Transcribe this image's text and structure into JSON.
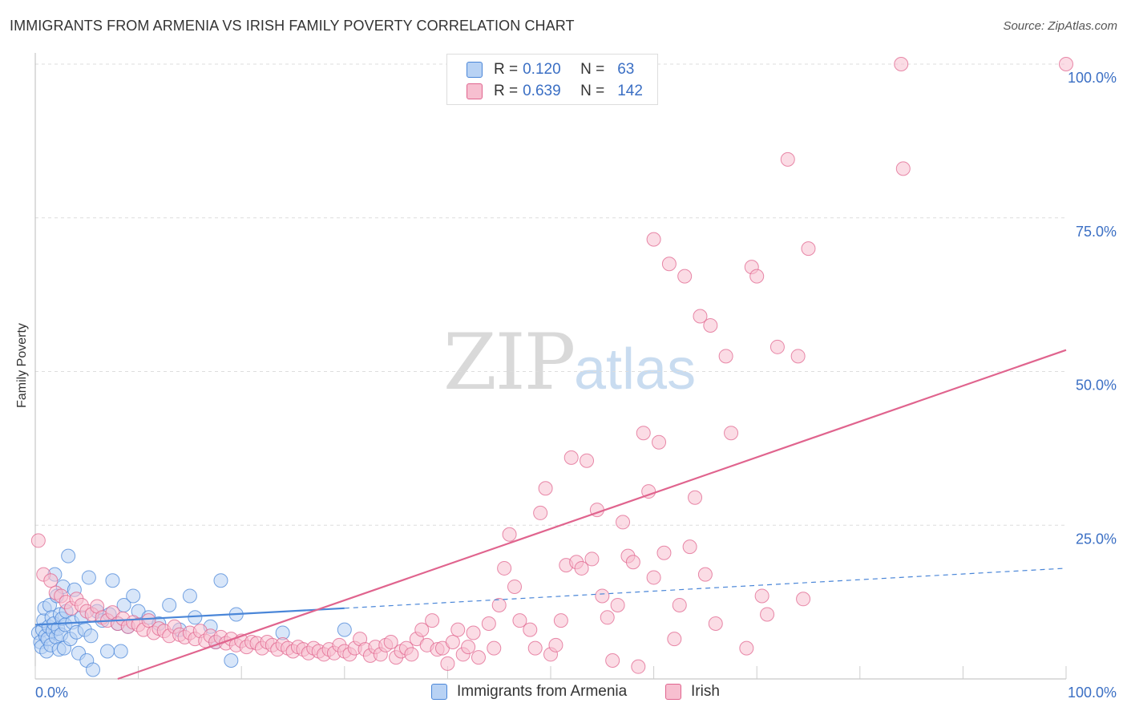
{
  "title": "IMMIGRANTS FROM ARMENIA VS IRISH FAMILY POVERTY CORRELATION CHART",
  "source": "Source: ZipAtlas.com",
  "watermark": {
    "zip": "ZIP",
    "atlas": "atlas"
  },
  "colors": {
    "armenia": "#4a86d8",
    "armenia_fill": "#b8d2f4",
    "irish": "#e0648e",
    "irish_fill": "#f7bfd0",
    "axis_label": "#3b6fc4",
    "grid": "#dddddd"
  },
  "legend": {
    "rows": [
      {
        "r_label": "R =",
        "r_value": "0.120",
        "n_label": "N =",
        "n_value": "63"
      },
      {
        "r_label": "R =",
        "r_value": "0.639",
        "n_label": "N =",
        "n_value": "142"
      }
    ]
  },
  "bottom_legend": {
    "armenia": "Immigrants from Armenia",
    "irish": "Irish"
  },
  "chart_data": {
    "type": "scatter",
    "title": "IMMIGRANTS FROM ARMENIA VS IRISH FAMILY POVERTY CORRELATION CHART",
    "xlabel": "",
    "ylabel": "Family Poverty",
    "xlim": [
      0,
      100
    ],
    "ylim": [
      0,
      100
    ],
    "x_tick_labels": [
      "0.0%",
      "100.0%"
    ],
    "y_tick_labels": [
      "25.0%",
      "50.0%",
      "75.0%",
      "100.0%"
    ],
    "y_ticks": [
      25,
      50,
      75,
      100
    ],
    "grid": true,
    "legend_position": "top-center",
    "series": [
      {
        "name": "Immigrants from Armenia",
        "color": "#4a86d8",
        "trend": {
          "x": [
            0,
            30
          ],
          "y": [
            8.8,
            11.5
          ],
          "dashed_to": [
            100,
            18
          ]
        },
        "points": [
          [
            0.3,
            7.5
          ],
          [
            0.5,
            6.0
          ],
          [
            0.6,
            5.2
          ],
          [
            0.7,
            8.0
          ],
          [
            0.8,
            9.5
          ],
          [
            0.9,
            11.5
          ],
          [
            1.0,
            7.0
          ],
          [
            1.1,
            4.5
          ],
          [
            1.2,
            6.5
          ],
          [
            1.3,
            8.5
          ],
          [
            1.4,
            12.0
          ],
          [
            1.5,
            5.5
          ],
          [
            1.6,
            10.0
          ],
          [
            1.7,
            7.8
          ],
          [
            1.8,
            9.0
          ],
          [
            1.9,
            17.0
          ],
          [
            2.0,
            6.8
          ],
          [
            2.1,
            13.5
          ],
          [
            2.2,
            8.2
          ],
          [
            2.3,
            4.8
          ],
          [
            2.4,
            10.5
          ],
          [
            2.5,
            7.2
          ],
          [
            2.6,
            9.8
          ],
          [
            2.7,
            15.0
          ],
          [
            2.8,
            5.0
          ],
          [
            2.9,
            8.8
          ],
          [
            3.0,
            11.0
          ],
          [
            3.2,
            20.0
          ],
          [
            3.4,
            6.5
          ],
          [
            3.6,
            9.2
          ],
          [
            3.8,
            14.5
          ],
          [
            4.0,
            7.6
          ],
          [
            4.2,
            4.2
          ],
          [
            4.5,
            10.0
          ],
          [
            4.8,
            8.0
          ],
          [
            5.0,
            3.0
          ],
          [
            5.2,
            16.5
          ],
          [
            5.4,
            7.0
          ],
          [
            5.6,
            1.5
          ],
          [
            6.0,
            11.0
          ],
          [
            6.5,
            9.5
          ],
          [
            7.0,
            4.5
          ],
          [
            7.2,
            10.5
          ],
          [
            7.5,
            16.0
          ],
          [
            8.0,
            9.0
          ],
          [
            8.3,
            4.5
          ],
          [
            8.6,
            12.0
          ],
          [
            9.0,
            8.5
          ],
          [
            9.5,
            13.5
          ],
          [
            10.0,
            11.0
          ],
          [
            11.0,
            10.0
          ],
          [
            12.0,
            9.0
          ],
          [
            13.0,
            12.0
          ],
          [
            14.0,
            8.0
          ],
          [
            15.0,
            13.5
          ],
          [
            15.5,
            10.0
          ],
          [
            17.0,
            8.5
          ],
          [
            19.0,
            3.0
          ],
          [
            18.0,
            16.0
          ],
          [
            19.5,
            10.5
          ],
          [
            24.0,
            7.5
          ],
          [
            30.0,
            8.0
          ],
          [
            17.5,
            6.0
          ]
        ]
      },
      {
        "name": "Irish",
        "color": "#e0648e",
        "trend": {
          "x": [
            8,
            100
          ],
          "y": [
            0,
            53.5
          ]
        },
        "points": [
          [
            0.3,
            22.5
          ],
          [
            0.8,
            17.0
          ],
          [
            1.5,
            16.0
          ],
          [
            2.0,
            14.0
          ],
          [
            2.5,
            13.5
          ],
          [
            3.0,
            12.5
          ],
          [
            3.5,
            11.5
          ],
          [
            4.0,
            13.0
          ],
          [
            4.5,
            12.0
          ],
          [
            5.0,
            11.0
          ],
          [
            5.5,
            10.5
          ],
          [
            6.0,
            11.8
          ],
          [
            6.5,
            10.0
          ],
          [
            7.0,
            9.5
          ],
          [
            7.5,
            10.8
          ],
          [
            8.0,
            9.0
          ],
          [
            8.5,
            9.8
          ],
          [
            9.0,
            8.5
          ],
          [
            9.5,
            9.2
          ],
          [
            10.0,
            8.8
          ],
          [
            10.5,
            8.0
          ],
          [
            11.0,
            9.5
          ],
          [
            11.5,
            7.5
          ],
          [
            12.0,
            8.2
          ],
          [
            12.5,
            7.8
          ],
          [
            13.0,
            7.0
          ],
          [
            13.5,
            8.5
          ],
          [
            14.0,
            7.2
          ],
          [
            14.5,
            6.8
          ],
          [
            15.0,
            7.5
          ],
          [
            15.5,
            6.5
          ],
          [
            16.0,
            7.8
          ],
          [
            16.5,
            6.2
          ],
          [
            17.0,
            7.0
          ],
          [
            17.5,
            6.0
          ],
          [
            18.0,
            6.8
          ],
          [
            18.5,
            5.8
          ],
          [
            19.0,
            6.5
          ],
          [
            19.5,
            5.5
          ],
          [
            20.0,
            6.2
          ],
          [
            20.5,
            5.2
          ],
          [
            21.0,
            6.0
          ],
          [
            21.5,
            5.8
          ],
          [
            22.0,
            5.0
          ],
          [
            22.5,
            6.0
          ],
          [
            23.0,
            5.5
          ],
          [
            23.5,
            4.8
          ],
          [
            24.0,
            5.6
          ],
          [
            24.5,
            5.0
          ],
          [
            25.0,
            4.5
          ],
          [
            25.5,
            5.2
          ],
          [
            26.0,
            4.8
          ],
          [
            26.5,
            4.2
          ],
          [
            27.0,
            5.0
          ],
          [
            27.5,
            4.5
          ],
          [
            28.0,
            4.0
          ],
          [
            28.5,
            4.8
          ],
          [
            29.0,
            4.2
          ],
          [
            29.5,
            5.5
          ],
          [
            30.0,
            4.5
          ],
          [
            30.5,
            4.0
          ],
          [
            31.0,
            5.0
          ],
          [
            31.5,
            6.5
          ],
          [
            32.0,
            4.8
          ],
          [
            32.5,
            3.8
          ],
          [
            33.0,
            5.2
          ],
          [
            33.5,
            4.0
          ],
          [
            34.0,
            5.5
          ],
          [
            34.5,
            6.0
          ],
          [
            35.0,
            3.5
          ],
          [
            35.5,
            4.5
          ],
          [
            36.0,
            5.0
          ],
          [
            36.5,
            4.0
          ],
          [
            37.0,
            6.5
          ],
          [
            37.5,
            8.0
          ],
          [
            38.0,
            5.5
          ],
          [
            38.5,
            9.5
          ],
          [
            39.0,
            4.8
          ],
          [
            39.5,
            5.0
          ],
          [
            40.0,
            2.5
          ],
          [
            40.5,
            6.0
          ],
          [
            41.0,
            8.0
          ],
          [
            41.5,
            4.0
          ],
          [
            42.0,
            5.2
          ],
          [
            42.5,
            7.5
          ],
          [
            43.0,
            3.5
          ],
          [
            44.0,
            9.0
          ],
          [
            44.5,
            5.0
          ],
          [
            45.0,
            12.0
          ],
          [
            45.5,
            18.0
          ],
          [
            46.0,
            23.5
          ],
          [
            46.5,
            15.0
          ],
          [
            47.0,
            9.5
          ],
          [
            48.0,
            8.0
          ],
          [
            48.5,
            5.0
          ],
          [
            49.0,
            27.0
          ],
          [
            49.5,
            31.0
          ],
          [
            50.0,
            4.0
          ],
          [
            50.5,
            5.5
          ],
          [
            51.0,
            9.5
          ],
          [
            51.5,
            18.5
          ],
          [
            52.0,
            36.0
          ],
          [
            52.5,
            19.0
          ],
          [
            53.0,
            18.0
          ],
          [
            53.5,
            35.5
          ],
          [
            54.0,
            19.5
          ],
          [
            54.5,
            27.5
          ],
          [
            55.0,
            13.5
          ],
          [
            55.5,
            10.0
          ],
          [
            56.0,
            3.0
          ],
          [
            56.5,
            12.0
          ],
          [
            57.0,
            25.5
          ],
          [
            57.5,
            20.0
          ],
          [
            58.0,
            19.0
          ],
          [
            58.5,
            2.0
          ],
          [
            59.0,
            40.0
          ],
          [
            59.5,
            30.5
          ],
          [
            60.0,
            16.5
          ],
          [
            60.5,
            38.5
          ],
          [
            61.0,
            20.5
          ],
          [
            61.5,
            67.5
          ],
          [
            62.0,
            6.5
          ],
          [
            62.5,
            12.0
          ],
          [
            63.0,
            65.5
          ],
          [
            63.5,
            21.5
          ],
          [
            64.0,
            29.5
          ],
          [
            64.5,
            59.0
          ],
          [
            65.0,
            17.0
          ],
          [
            65.5,
            57.5
          ],
          [
            66.0,
            9.0
          ],
          [
            67.0,
            52.5
          ],
          [
            67.5,
            40.0
          ],
          [
            69.0,
            5.0
          ],
          [
            69.5,
            67.0
          ],
          [
            70.0,
            65.5
          ],
          [
            70.5,
            13.5
          ],
          [
            71.0,
            10.5
          ],
          [
            72.0,
            54.0
          ],
          [
            73.0,
            84.5
          ],
          [
            74.0,
            52.5
          ],
          [
            74.5,
            13.0
          ],
          [
            75.0,
            70.0
          ],
          [
            60.0,
            71.5
          ],
          [
            84.0,
            100.0
          ],
          [
            84.2,
            83.0
          ],
          [
            100.0,
            100.0
          ]
        ]
      }
    ]
  }
}
